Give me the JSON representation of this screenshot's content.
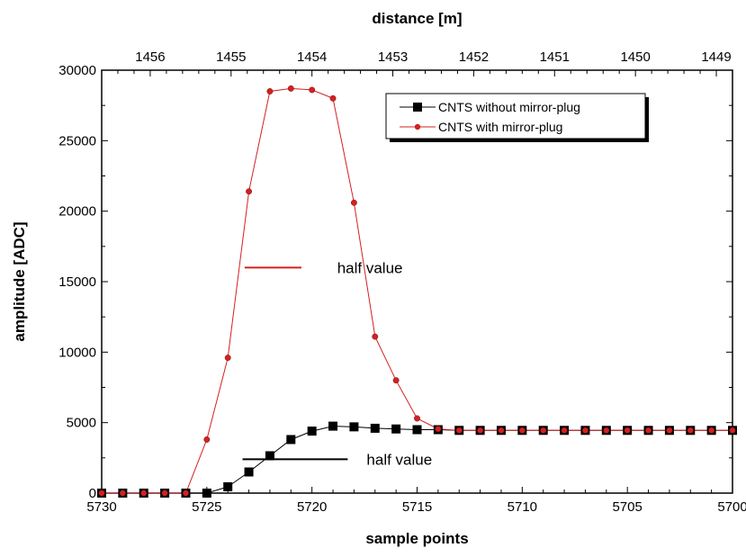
{
  "chart_data": {
    "type": "line",
    "xlabel": "sample points",
    "ylabel": "amplitude [ADC]",
    "top_xlabel": "distance [m]",
    "xlim": [
      5730,
      5700
    ],
    "ylim": [
      0,
      30000
    ],
    "top_xlim": [
      1456.6,
      1448.8
    ],
    "x_ticks": [
      "5730",
      "5725",
      "5720",
      "5715",
      "5710",
      "5705",
      "5700"
    ],
    "y_ticks": [
      "0",
      "5000",
      "10000",
      "15000",
      "20000",
      "25000",
      "30000"
    ],
    "top_ticks": [
      "1456",
      "1455",
      "1454",
      "1453",
      "1452",
      "1451",
      "1450",
      "1449"
    ],
    "grid": false,
    "legend_position": "top-right",
    "x": [
      5730,
      5729,
      5728,
      5727,
      5726,
      5725,
      5724,
      5723,
      5722,
      5721,
      5720,
      5719,
      5718,
      5717,
      5716,
      5715,
      5714,
      5713,
      5712,
      5711,
      5710,
      5709,
      5708,
      5707,
      5706,
      5705,
      5704,
      5703,
      5702,
      5701,
      5700
    ],
    "series": [
      {
        "name": "CNTS without mirror-plug",
        "color": "#000000",
        "marker": "square",
        "values": [
          0,
          0,
          0,
          0,
          0,
          0,
          450,
          1500,
          2650,
          3800,
          4400,
          4750,
          4700,
          4600,
          4550,
          4500,
          4500,
          4450,
          4450,
          4450,
          4450,
          4450,
          4450,
          4450,
          4450,
          4450,
          4450,
          4450,
          4450,
          4450,
          4450
        ]
      },
      {
        "name": "CNTS with mirror-plug",
        "color": "#d42020",
        "marker": "circle",
        "values": [
          0,
          0,
          0,
          0,
          0,
          3800,
          9600,
          21400,
          28500,
          28700,
          28600,
          28000,
          20600,
          11100,
          8000,
          5300,
          4550,
          4450,
          4450,
          4450,
          4450,
          4450,
          4450,
          4450,
          4450,
          4450,
          4450,
          4450,
          4450,
          4450,
          4450
        ]
      }
    ],
    "annotations": [
      {
        "text": "half value",
        "series_color": "#d42020",
        "line_x": [
          5723.2,
          5720.5
        ],
        "y": 16000,
        "text_x": 5718.8
      },
      {
        "text": "half value",
        "series_color": "#000000",
        "line_x": [
          5723.3,
          5718.3
        ],
        "y": 2400,
        "text_x": 5717.4
      }
    ]
  }
}
